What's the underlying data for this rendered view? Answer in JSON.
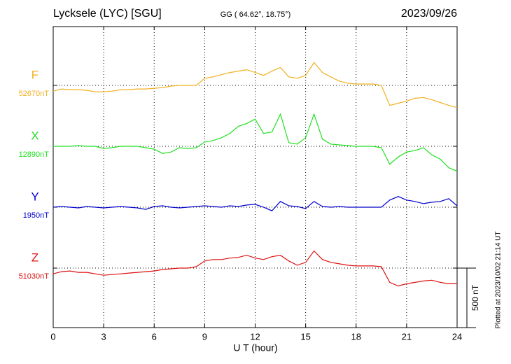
{
  "chart_data": {
    "type": "line",
    "title": "Lycksele (LYC)  [SGU]",
    "subtitle": "GG ( 64.62°,  18.75°)",
    "date": "2023/09/26",
    "xlabel": "U T (hour)",
    "footnote": "Plotted at 2023/10/02 21:14 UT",
    "xlim": [
      0,
      24
    ],
    "xticks": [
      0,
      3,
      6,
      9,
      12,
      15,
      18,
      21,
      24
    ],
    "grid": true,
    "scale_bar": {
      "value": 500,
      "label": "500 nT"
    },
    "x": [
      0,
      0.5,
      1,
      1.5,
      2,
      2.5,
      3,
      3.5,
      4,
      4.5,
      5,
      5.5,
      6,
      6.5,
      7,
      7.5,
      8,
      8.5,
      9,
      9.5,
      10,
      10.5,
      11,
      11.5,
      12,
      12.5,
      13,
      13.5,
      14,
      14.5,
      15,
      15.5,
      16,
      16.5,
      17,
      17.5,
      18,
      18.5,
      19,
      19.5,
      20,
      20.5,
      21,
      21.5,
      22,
      22.5,
      23,
      23.5,
      24
    ],
    "series": [
      {
        "name": "F",
        "color": "#f0b020",
        "baseline": {
          "value": 52670,
          "label": "52670nT"
        },
        "values": [
          52622,
          52640,
          52634,
          52634,
          52628,
          52616,
          52616,
          52622,
          52634,
          52634,
          52640,
          52640,
          52646,
          52652,
          52664,
          52670,
          52670,
          52670,
          52730,
          52742,
          52760,
          52778,
          52790,
          52802,
          52778,
          52754,
          52790,
          52820,
          52742,
          52730,
          52754,
          52862,
          52778,
          52742,
          52706,
          52688,
          52682,
          52682,
          52682,
          52670,
          52502,
          52520,
          52538,
          52562,
          52568,
          52550,
          52526,
          52502,
          52484
        ]
      },
      {
        "name": "X",
        "color": "#22e022",
        "baseline": {
          "value": 12890,
          "label": "12890nT"
        },
        "values": [
          12890,
          12890,
          12890,
          12896,
          12890,
          12890,
          12872,
          12878,
          12890,
          12890,
          12890,
          12878,
          12866,
          12830,
          12842,
          12878,
          12872,
          12878,
          12926,
          12938,
          12962,
          12998,
          13058,
          13082,
          13118,
          12998,
          13010,
          13160,
          12920,
          12908,
          12962,
          13160,
          12950,
          12908,
          12902,
          12896,
          12890,
          12890,
          12890,
          12878,
          12740,
          12800,
          12842,
          12854,
          12878,
          12818,
          12782,
          12710,
          12680
        ]
      },
      {
        "name": "Y",
        "color": "#0000cc",
        "baseline": {
          "value": 1950,
          "label": "1950nT"
        },
        "values": [
          1950,
          1956,
          1950,
          1944,
          1956,
          1950,
          1944,
          1950,
          1956,
          1950,
          1944,
          1932,
          1956,
          1962,
          1950,
          1944,
          1950,
          1956,
          1962,
          1956,
          1950,
          1962,
          1956,
          1968,
          1974,
          1950,
          1920,
          1998,
          1962,
          1956,
          1938,
          1998,
          1956,
          1950,
          1956,
          1950,
          1950,
          1950,
          1950,
          1950,
          2010,
          2040,
          2010,
          1998,
          1980,
          1992,
          1998,
          2022,
          1962
        ]
      },
      {
        "name": "Z",
        "color": "#dd1111",
        "baseline": {
          "value": 51030,
          "label": "51030nT"
        },
        "values": [
          50982,
          51000,
          51006,
          50994,
          50994,
          50982,
          50970,
          50976,
          50982,
          50988,
          50994,
          51000,
          51006,
          51018,
          51024,
          51030,
          51030,
          51042,
          51090,
          51102,
          51102,
          51114,
          51120,
          51138,
          51114,
          51102,
          51126,
          51138,
          51090,
          51054,
          51078,
          51174,
          51102,
          51078,
          51066,
          51054,
          51048,
          51048,
          51048,
          51042,
          50910,
          50880,
          50898,
          50910,
          50922,
          50928,
          50910,
          50898,
          50898
        ]
      }
    ]
  }
}
